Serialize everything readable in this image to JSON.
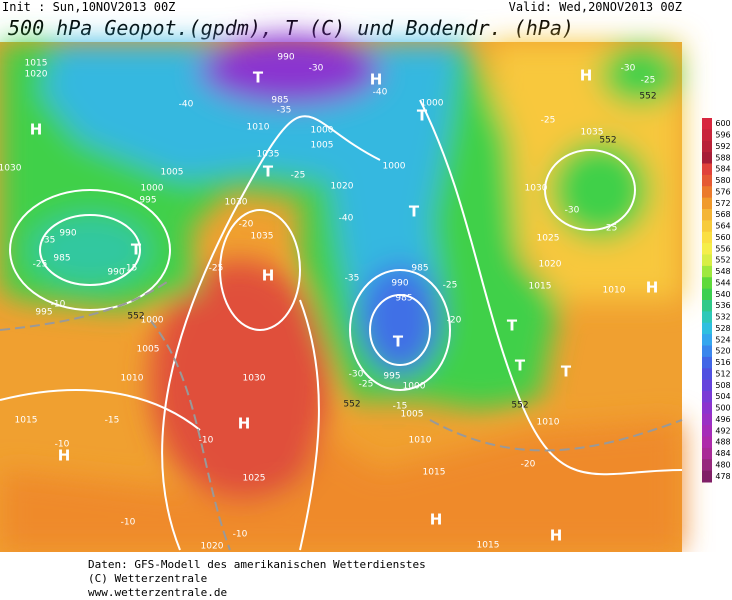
{
  "header": {
    "init": "Init : Sun,10NOV2013 00Z",
    "valid": "Valid: Wed,20NOV2013 00Z",
    "title": "500 hPa Geopot.(gpdm), T (C) und Bodendr. (hPa)"
  },
  "colorbar": {
    "levels": [
      600,
      596,
      592,
      588,
      584,
      580,
      576,
      572,
      568,
      564,
      560,
      556,
      552,
      548,
      544,
      540,
      536,
      532,
      528,
      524,
      520,
      516,
      512,
      508,
      504,
      500,
      496,
      492,
      488,
      484,
      480,
      478
    ],
    "colors": [
      "#d7263d",
      "#c8243a",
      "#b82238",
      "#a61d36",
      "#e0423a",
      "#e55a33",
      "#eb7a2c",
      "#f09a2c",
      "#f4b536",
      "#f7cb3c",
      "#fadf44",
      "#f5ee4a",
      "#d8ee46",
      "#9fe83e",
      "#5ed93a",
      "#3ccf50",
      "#30c98a",
      "#2ec8b8",
      "#2fbfe0",
      "#35a6ee",
      "#3a86ec",
      "#4266e6",
      "#5050e0",
      "#6644dc",
      "#7a3cd6",
      "#8c34ce",
      "#9a30c4",
      "#a52cb8",
      "#ad2aaa",
      "#a82a96",
      "#96287c",
      "#801f66"
    ]
  },
  "map_labels": [
    "H",
    "H",
    "H",
    "H",
    "H",
    "H",
    "H",
    "H",
    "H",
    "T",
    "T",
    "T",
    "T",
    "T",
    "T",
    "T",
    "T",
    "T",
    "990",
    "1015",
    "1020",
    "985",
    "1000",
    "1010",
    "1005",
    "1000",
    "1035",
    "1005",
    "1000",
    "995",
    "1020",
    "1000",
    "1030",
    "1035",
    "990",
    "985",
    "990",
    "995",
    "1000",
    "1005",
    "1010",
    "1030",
    "1015",
    "1025",
    "1020",
    "1015",
    "1015",
    "1010",
    "1005",
    "995",
    "1000",
    "985",
    "990",
    "985",
    "1015",
    "1010",
    "1025",
    "1020",
    "1030",
    "1035",
    "1010",
    "1030",
    "-40",
    "-35",
    "-30",
    "-40",
    "-25",
    "-30",
    "-25",
    "-40",
    "-35",
    "-25",
    "-20",
    "-30",
    "-25",
    "-15",
    "-25",
    "-20",
    "-25",
    "-35",
    "-25",
    "-15",
    "-10",
    "-15",
    "-10",
    "-10",
    "-10",
    "-10",
    "-20",
    "-30",
    "-25",
    "552",
    "552",
    "552",
    "552",
    "552"
  ],
  "footer": [
    "Daten: GFS-Modell des amerikanischen Wetterdienstes",
    "(C) Wetterzentrale",
    "www.wetterzentrale.de"
  ]
}
